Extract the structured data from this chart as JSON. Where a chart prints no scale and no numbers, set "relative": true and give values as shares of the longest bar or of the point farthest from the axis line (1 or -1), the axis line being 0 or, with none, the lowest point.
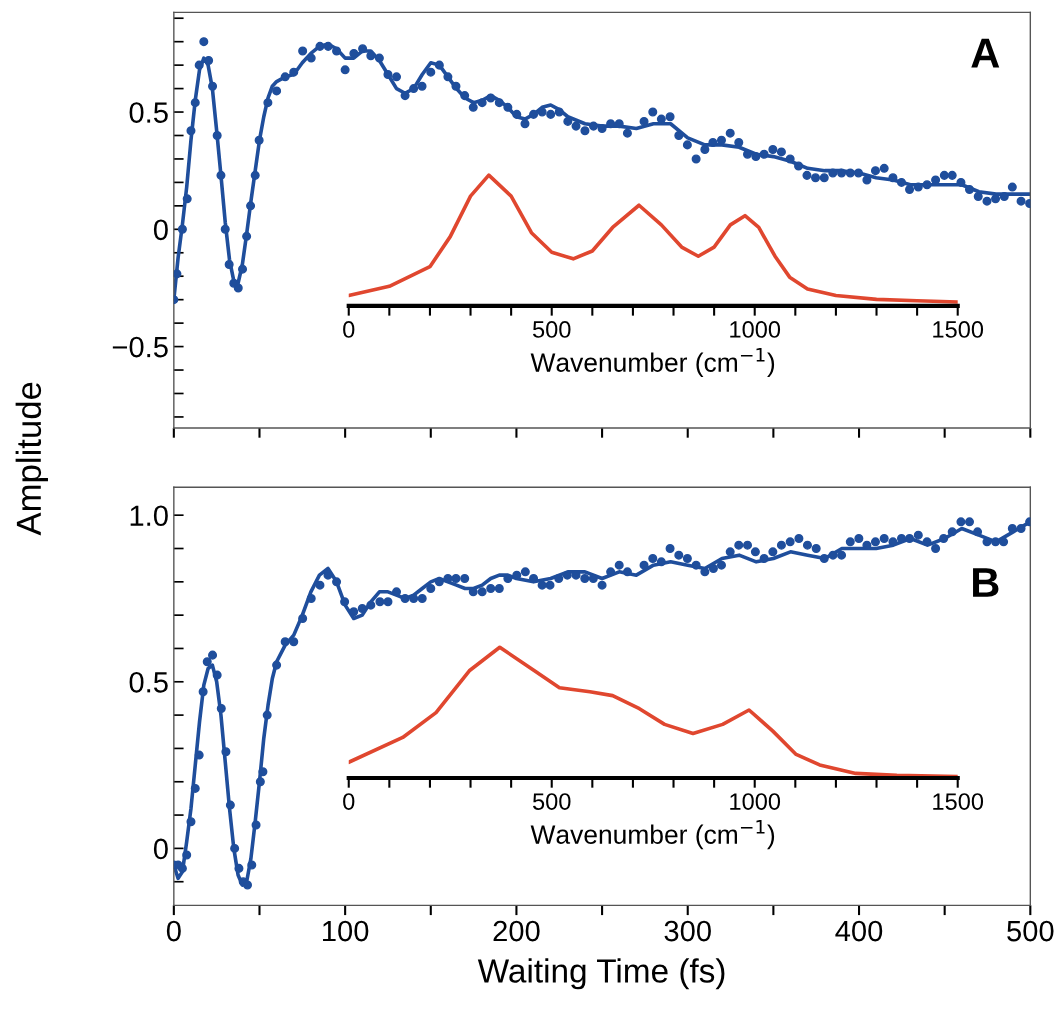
{
  "chart_data": [
    {
      "type": "scatter",
      "ylabel": "Amplitude",
      "annotations": [
        "A"
      ],
      "xlim": [
        0,
        500
      ],
      "ylim": [
        -0.847,
        0.925
      ],
      "tick_labels": "y",
      "xticks": [
        {
          "value": 0,
          "label": null
        },
        {
          "value": 50,
          "label": null
        },
        {
          "value": 100,
          "label": null
        },
        {
          "value": 150,
          "label": null
        },
        {
          "value": 200,
          "label": null
        },
        {
          "value": 250,
          "label": null
        },
        {
          "value": 300,
          "label": null
        },
        {
          "value": 350,
          "label": null
        },
        {
          "value": 400,
          "label": null
        },
        {
          "value": 450,
          "label": null
        },
        {
          "value": 500,
          "label": null
        }
      ],
      "yticks": [
        {
          "value": -0.8,
          "label": null
        },
        {
          "value": -0.7,
          "label": null
        },
        {
          "value": -0.6,
          "label": null
        },
        {
          "value": -0.5,
          "label": "−0.5"
        },
        {
          "value": -0.4,
          "label": null
        },
        {
          "value": -0.3,
          "label": null
        },
        {
          "value": -0.2,
          "label": null
        },
        {
          "value": -0.1,
          "label": null
        },
        0,
        {
          "value": 0.1,
          "label": null
        },
        {
          "value": 0.2,
          "label": null
        },
        {
          "value": 0.3,
          "label": null
        },
        {
          "value": 0.4,
          "label": null
        },
        0.5,
        {
          "value": 0.6,
          "label": null
        },
        {
          "value": 0.7,
          "label": null
        },
        {
          "value": 0.8,
          "label": null
        },
        {
          "value": 0.9,
          "label": null
        }
      ],
      "series": [
        {
          "type": "scatter",
          "marker": "circle",
          "color": "#1f4e9c",
          "x": [
            0,
            1.8,
            5,
            7.8,
            10,
            12.5,
            14.8,
            17.5,
            20.3,
            22.6,
            25.3,
            27.5,
            30,
            32.3,
            35,
            37.6,
            40.1,
            42.5,
            44.8,
            47.5,
            49.8,
            54.9,
            60,
            65,
            70,
            75.2,
            80.2,
            85.3,
            90.1,
            95,
            100,
            105.1,
            110.2,
            115,
            120,
            125,
            130,
            135,
            140,
            144.9,
            150,
            155,
            160,
            164.7,
            169.8,
            174.8,
            180,
            185,
            190,
            195,
            200.2,
            205,
            210,
            215,
            220,
            225,
            230,
            234.8,
            240,
            245,
            250,
            255,
            260,
            264.8,
            274.5,
            279.6,
            284.6,
            289.7,
            294.8,
            299.8,
            304.9,
            310,
            314.7,
            319.7,
            324.8,
            329.8,
            334.9,
            339.8,
            344.6,
            349.7,
            354.7,
            359.8,
            364.7,
            369.6,
            374.6,
            379.7,
            384.7,
            389.8,
            394.9,
            399.7,
            404.6,
            409.6,
            414.7,
            419.8,
            424.8,
            429.5,
            434.6,
            439.7,
            444.7,
            449.8,
            454.4,
            459.5,
            464.5,
            469.6,
            474.7,
            479.7,
            484.8,
            489.5,
            494.6,
            499.6
          ],
          "values": [
            -0.3,
            -0.19,
            0.0,
            0.13,
            0.42,
            0.54,
            0.7,
            0.8,
            0.72,
            0.61,
            0.4,
            0.23,
            0.0,
            -0.15,
            -0.23,
            -0.25,
            -0.17,
            -0.03,
            0.1,
            0.23,
            0.38,
            0.54,
            0.59,
            0.65,
            0.67,
            0.76,
            0.73,
            0.78,
            0.78,
            0.76,
            0.68,
            0.75,
            0.77,
            0.74,
            0.73,
            0.66,
            0.65,
            0.57,
            0.6,
            0.61,
            0.67,
            0.7,
            0.65,
            0.61,
            0.57,
            0.52,
            0.54,
            0.56,
            0.54,
            0.52,
            0.49,
            0.45,
            0.49,
            0.5,
            0.49,
            0.5,
            0.46,
            0.44,
            0.42,
            0.44,
            0.43,
            0.45,
            0.45,
            0.41,
            0.46,
            0.5,
            0.47,
            0.48,
            0.4,
            0.36,
            0.3,
            0.34,
            0.37,
            0.38,
            0.41,
            0.37,
            0.32,
            0.31,
            0.32,
            0.34,
            0.33,
            0.3,
            0.27,
            0.23,
            0.22,
            0.22,
            0.24,
            0.24,
            0.24,
            0.24,
            0.21,
            0.25,
            0.26,
            0.22,
            0.2,
            0.17,
            0.18,
            0.19,
            0.21,
            0.23,
            0.23,
            0.2,
            0.17,
            0.14,
            0.12,
            0.13,
            0.14,
            0.18,
            0.12,
            0.11
          ]
        },
        {
          "type": "line",
          "color": "#1f4e9c",
          "x": [
            0,
            2.5,
            5,
            7.5,
            10,
            12.5,
            15,
            17.5,
            20,
            22.5,
            25,
            27.5,
            30,
            32.5,
            35,
            37.5,
            40,
            42.5,
            45,
            47.5,
            50,
            52.5,
            55,
            57.5,
            60,
            65,
            70,
            75,
            80,
            85,
            90,
            95,
            100,
            105,
            110,
            115,
            120,
            125,
            130,
            135,
            140,
            145,
            150,
            155,
            160,
            165,
            170,
            175,
            180,
            185,
            190,
            195,
            200,
            205,
            210,
            215,
            220,
            225,
            230,
            240,
            250,
            260,
            270,
            280,
            290,
            300,
            310,
            320,
            330,
            340,
            350,
            360,
            370,
            380,
            390,
            400,
            410,
            420,
            430,
            440,
            450,
            460,
            470,
            480,
            490,
            500
          ],
          "values": [
            -0.3,
            -0.12,
            0.02,
            0.18,
            0.38,
            0.55,
            0.68,
            0.73,
            0.7,
            0.6,
            0.42,
            0.23,
            0.03,
            -0.13,
            -0.22,
            -0.23,
            -0.15,
            -0.02,
            0.12,
            0.25,
            0.38,
            0.48,
            0.56,
            0.61,
            0.63,
            0.65,
            0.66,
            0.71,
            0.75,
            0.78,
            0.79,
            0.77,
            0.73,
            0.73,
            0.76,
            0.76,
            0.72,
            0.66,
            0.6,
            0.58,
            0.6,
            0.66,
            0.71,
            0.7,
            0.65,
            0.6,
            0.56,
            0.54,
            0.55,
            0.57,
            0.55,
            0.52,
            0.48,
            0.47,
            0.49,
            0.52,
            0.53,
            0.51,
            0.48,
            0.45,
            0.44,
            0.44,
            0.43,
            0.45,
            0.45,
            0.39,
            0.36,
            0.36,
            0.35,
            0.32,
            0.31,
            0.29,
            0.26,
            0.25,
            0.25,
            0.24,
            0.22,
            0.21,
            0.19,
            0.19,
            0.19,
            0.19,
            0.16,
            0.15,
            0.15,
            0.15
          ]
        }
      ]
    },
    {
      "type": "line",
      "relative": true,
      "xlabel": "Wavenumber (cm$^{−1}$)",
      "xlim": [
        0,
        1500
      ],
      "tick_labels": "x",
      "xticks": [
        0,
        {
          "value": 100,
          "label": null
        },
        {
          "value": 200,
          "label": null
        },
        {
          "value": 300,
          "label": null
        },
        {
          "value": 400,
          "label": null
        },
        500,
        {
          "value": 600,
          "label": null
        },
        {
          "value": 700,
          "label": null
        },
        {
          "value": 800,
          "label": null
        },
        {
          "value": 900,
          "label": null
        },
        1000,
        {
          "value": 1100,
          "label": null
        },
        {
          "value": 1200,
          "label": null
        },
        {
          "value": 1300,
          "label": null
        },
        {
          "value": 1400,
          "label": null
        },
        1500
      ],
      "series": [
        {
          "color": "#e0472f",
          "x": [
            0,
            100,
            200,
            250,
            300,
            345,
            400,
            450,
            500,
            553,
            600,
            650,
            715,
            770,
            820,
            861,
            900,
            940,
            976,
            1010,
            1050,
            1086,
            1130,
            1200,
            1300,
            1400,
            1500
          ],
          "values": [
            0.08,
            0.15,
            0.3,
            0.53,
            0.84,
            1,
            0.84,
            0.56,
            0.41,
            0.36,
            0.42,
            0.6,
            0.77,
            0.62,
            0.45,
            0.38,
            0.45,
            0.62,
            0.69,
            0.6,
            0.38,
            0.22,
            0.13,
            0.08,
            0.05,
            0.04,
            0.03
          ]
        }
      ]
    },
    {
      "type": "scatter",
      "xlabel": "Waiting Time (fs)",
      "annotations": [
        "B"
      ],
      "xlim": [
        0,
        500
      ],
      "ylim": [
        -0.171,
        1.084
      ],
      "xticks": [
        0,
        {
          "value": 50,
          "label": null
        },
        100,
        {
          "value": 150,
          "label": null
        },
        200,
        {
          "value": 250,
          "label": null
        },
        300,
        {
          "value": 350,
          "label": null
        },
        400,
        {
          "value": 450,
          "label": null
        },
        500
      ],
      "yticks": [
        {
          "value": -0.1,
          "label": null
        },
        0,
        {
          "value": 0.1,
          "label": null
        },
        {
          "value": 0.2,
          "label": null
        },
        {
          "value": 0.3,
          "label": null
        },
        {
          "value": 0.4,
          "label": null
        },
        0.5,
        {
          "value": 0.6,
          "label": null
        },
        {
          "value": 0.7,
          "label": null
        },
        {
          "value": 0.8,
          "label": null
        },
        {
          "value": 0.9,
          "label": null
        },
        {
          "value": 1,
          "label": "1.0"
        }
      ],
      "series": [
        {
          "type": "scatter",
          "marker": "circle",
          "color": "#1f4e9c",
          "x": [
            0,
            2.5,
            5,
            7.5,
            10,
            12.5,
            14.8,
            17.1,
            19.5,
            22.6,
            25.3,
            27.7,
            30.4,
            33,
            35.5,
            38,
            40.5,
            43,
            45.5,
            48,
            50.5,
            52,
            54.5,
            60,
            65,
            70,
            75.2,
            80.2,
            85.3,
            90,
            95,
            99.7,
            105,
            110,
            115,
            120.3,
            125,
            130,
            135,
            140,
            145,
            150,
            155,
            160,
            164.7,
            169.8,
            174.8,
            180,
            185,
            190,
            195,
            200.2,
            205.2,
            210,
            215,
            219.6,
            224.7,
            229.7,
            234.8,
            239.9,
            244.9,
            250,
            255,
            260,
            264.8,
            274.5,
            279.6,
            284.6,
            289.7,
            294.8,
            299.8,
            304.9,
            310,
            315,
            319.7,
            324.8,
            329.8,
            334.9,
            339.5,
            344.6,
            349.7,
            354.7,
            359.8,
            364.9,
            369.9,
            375,
            379.7,
            384.8,
            389.8,
            394.9,
            399.9,
            404.6,
            409.6,
            414.7,
            419.8,
            424.8,
            429.5,
            434.6,
            439.7,
            444.7,
            449.4,
            454.4,
            459.5,
            464.5,
            469.2,
            474.7,
            479.7,
            484.4,
            489.5,
            494.6,
            499.6
          ],
          "values": [
            -0.05,
            -0.05,
            -0.06,
            -0.02,
            0.08,
            0.18,
            0.28,
            0.47,
            0.56,
            0.58,
            0.52,
            0.42,
            0.29,
            0.13,
            0.0,
            -0.06,
            -0.1,
            -0.11,
            -0.05,
            0.07,
            0.2,
            0.23,
            0.4,
            0.55,
            0.62,
            0.62,
            0.69,
            0.75,
            0.79,
            0.82,
            0.8,
            0.74,
            0.71,
            0.72,
            0.73,
            0.74,
            0.74,
            0.77,
            0.75,
            0.75,
            0.75,
            0.78,
            0.8,
            0.81,
            0.81,
            0.81,
            0.77,
            0.77,
            0.78,
            0.78,
            0.81,
            0.82,
            0.83,
            0.81,
            0.79,
            0.79,
            0.81,
            0.82,
            0.82,
            0.81,
            0.81,
            0.79,
            0.83,
            0.85,
            0.83,
            0.85,
            0.87,
            0.86,
            0.9,
            0.88,
            0.87,
            0.85,
            0.83,
            0.84,
            0.85,
            0.89,
            0.91,
            0.91,
            0.89,
            0.87,
            0.89,
            0.91,
            0.92,
            0.93,
            0.91,
            0.9,
            0.87,
            0.88,
            0.88,
            0.92,
            0.93,
            0.91,
            0.92,
            0.93,
            0.92,
            0.93,
            0.93,
            0.94,
            0.92,
            0.9,
            0.93,
            0.95,
            0.98,
            0.98,
            0.95,
            0.92,
            0.92,
            0.92,
            0.96,
            0.96,
            0.98
          ]
        },
        {
          "type": "line",
          "color": "#1f4e9c",
          "x": [
            0,
            2.5,
            5,
            7.5,
            10,
            12.5,
            15,
            17.5,
            20,
            22.5,
            25,
            27.5,
            30,
            32.5,
            35,
            37.5,
            40,
            42.5,
            45,
            47.5,
            50,
            52.5,
            55,
            57.5,
            60,
            65,
            70,
            75,
            80,
            85,
            90,
            95,
            100,
            105,
            110,
            115,
            120,
            125,
            130,
            135,
            140,
            145,
            150,
            155,
            160,
            165,
            170,
            175,
            180,
            185,
            190,
            195,
            200,
            210,
            220,
            230,
            240,
            250,
            260,
            270,
            280,
            290,
            300,
            310,
            320,
            330,
            340,
            350,
            360,
            370,
            380,
            390,
            400,
            410,
            420,
            430,
            440,
            450,
            460,
            470,
            480,
            490,
            500
          ],
          "values": [
            -0.05,
            -0.09,
            -0.07,
            0.02,
            0.12,
            0.25,
            0.38,
            0.49,
            0.54,
            0.55,
            0.5,
            0.4,
            0.26,
            0.12,
            0.0,
            -0.08,
            -0.11,
            -0.1,
            -0.03,
            0.08,
            0.2,
            0.33,
            0.43,
            0.51,
            0.56,
            0.61,
            0.64,
            0.7,
            0.77,
            0.82,
            0.84,
            0.8,
            0.73,
            0.69,
            0.7,
            0.74,
            0.77,
            0.77,
            0.76,
            0.75,
            0.76,
            0.78,
            0.8,
            0.81,
            0.8,
            0.79,
            0.78,
            0.78,
            0.79,
            0.81,
            0.82,
            0.82,
            0.81,
            0.8,
            0.81,
            0.83,
            0.83,
            0.81,
            0.83,
            0.82,
            0.85,
            0.86,
            0.85,
            0.84,
            0.87,
            0.88,
            0.86,
            0.87,
            0.89,
            0.88,
            0.87,
            0.9,
            0.9,
            0.9,
            0.91,
            0.93,
            0.91,
            0.93,
            0.96,
            0.94,
            0.92,
            0.95,
            0.98
          ]
        }
      ]
    },
    {
      "type": "line",
      "relative": true,
      "xlabel": "Wavenumber (cm$^{−1}$)",
      "xlim": [
        0,
        1500
      ],
      "tick_labels": "x",
      "xticks": [
        0,
        {
          "value": 100,
          "label": null
        },
        {
          "value": 200,
          "label": null
        },
        {
          "value": 300,
          "label": null
        },
        {
          "value": 400,
          "label": null
        },
        500,
        {
          "value": 600,
          "label": null
        },
        {
          "value": 700,
          "label": null
        },
        {
          "value": 800,
          "label": null
        },
        {
          "value": 900,
          "label": null
        },
        1000,
        {
          "value": 1100,
          "label": null
        },
        {
          "value": 1200,
          "label": null
        },
        {
          "value": 1300,
          "label": null
        },
        {
          "value": 1400,
          "label": null
        },
        1500
      ],
      "series": [
        {
          "color": "#e0472f",
          "x": [
            0,
            133,
            215,
            297,
            372,
            462,
            519,
            594,
            650,
            716,
            778,
            848,
            921,
            986,
            1044,
            1102,
            1160,
            1249,
            1350,
            1500
          ],
          "values": [
            0.12,
            0.31,
            0.5,
            0.82,
            1,
            0.81,
            0.69,
            0.66,
            0.63,
            0.53,
            0.41,
            0.34,
            0.41,
            0.52,
            0.36,
            0.18,
            0.1,
            0.035,
            0.02,
            0.01
          ]
        }
      ]
    }
  ]
}
